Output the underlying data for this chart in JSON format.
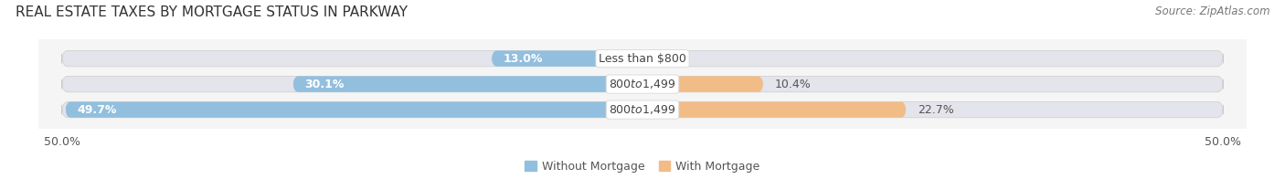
{
  "title": "REAL ESTATE TAXES BY MORTGAGE STATUS IN PARKWAY",
  "source": "Source: ZipAtlas.com",
  "bars": [
    {
      "label": "Less than $800",
      "without_mortgage": 13.0,
      "with_mortgage": 0.0
    },
    {
      "label": "$800 to $1,499",
      "without_mortgage": 30.1,
      "with_mortgage": 10.4
    },
    {
      "label": "$800 to $1,499",
      "without_mortgage": 49.7,
      "with_mortgage": 22.7
    }
  ],
  "x_min": -50.0,
  "x_max": 50.0,
  "x_tick_labels_left": "50.0%",
  "x_tick_labels_right": "50.0%",
  "color_without": "#92bfde",
  "color_with": "#f2bc87",
  "color_bar_bg": "#e4e4ec",
  "background_color": "#f5f5f5",
  "bar_height": 0.62,
  "legend_labels": [
    "Without Mortgage",
    "With Mortgage"
  ],
  "title_fontsize": 11,
  "source_fontsize": 8.5,
  "label_fontsize": 9,
  "pct_fontsize": 9,
  "tick_fontsize": 9
}
